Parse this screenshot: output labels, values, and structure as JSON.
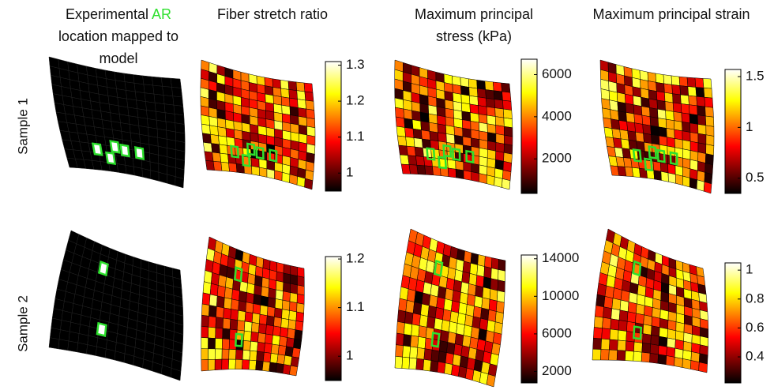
{
  "columns": [
    {
      "title_pre": "Experimental",
      "title_hl": "AR",
      "title_post": "location mapped to model"
    },
    {
      "title": "Fiber stretch ratio"
    },
    {
      "title": "Maximum principal stress (kPa)"
    },
    {
      "title": "Maximum principal strain"
    }
  ],
  "rows": [
    {
      "label": "Sample 1",
      "colorbars": [
        {
          "range": [
            0.95,
            1.31
          ],
          "ticks": [
            1,
            1.1,
            1.2,
            1.3
          ]
        },
        {
          "range": [
            360,
            6730
          ],
          "ticks": [
            2000,
            4000,
            6000
          ]
        },
        {
          "range": [
            0.35,
            1.57
          ],
          "ticks": [
            0.5,
            1,
            1.5
          ]
        }
      ]
    },
    {
      "label": "Sample 2",
      "colorbars": [
        {
          "range": [
            0.95,
            1.205
          ],
          "ticks": [
            1,
            1.1,
            1.2
          ]
        },
        {
          "range": [
            780,
            14400
          ],
          "ticks": [
            2000,
            6000,
            10000,
            14000
          ]
        },
        {
          "range": [
            0.22,
            1.05
          ],
          "ticks": [
            0.4,
            0.6,
            0.8,
            1
          ]
        }
      ]
    }
  ]
}
